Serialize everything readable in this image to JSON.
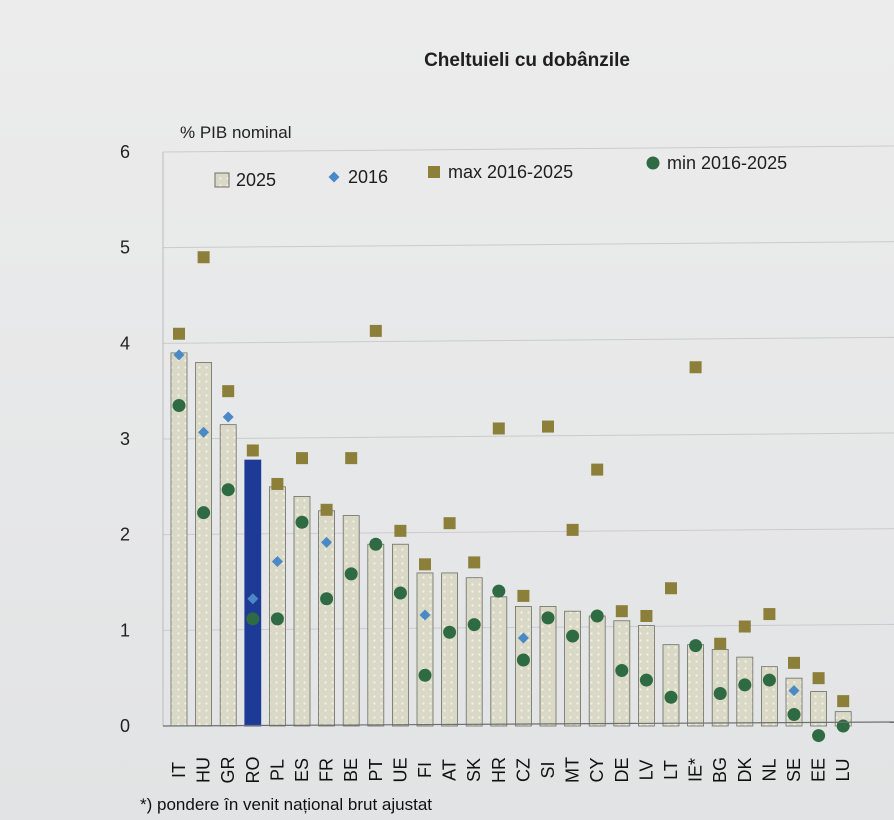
{
  "chart_data": {
    "type": "bar",
    "title": "Cheltuieli cu dobânzile",
    "ylabel": "% PIB nominal",
    "xlabel": "",
    "ylim": [
      0,
      6
    ],
    "yticks": [
      0,
      1,
      2,
      3,
      4,
      5,
      6
    ],
    "grid": true,
    "legend_position": "top",
    "categories": [
      "IT",
      "HU",
      "GR",
      "RO",
      "PL",
      "ES",
      "FR",
      "BE",
      "PT",
      "UE",
      "FI",
      "AT",
      "SK",
      "HR",
      "CZ",
      "SI",
      "MT",
      "CY",
      "DE",
      "LV",
      "LT",
      "IE*",
      "BG",
      "DK",
      "NL",
      "SE",
      "EE",
      "LU"
    ],
    "highlight_category": "RO",
    "series": [
      {
        "name": "2025",
        "marker": "bar",
        "values": [
          3.9,
          3.8,
          3.15,
          2.78,
          2.5,
          2.4,
          2.25,
          2.2,
          1.9,
          1.9,
          1.6,
          1.6,
          1.55,
          1.35,
          1.25,
          1.25,
          1.2,
          1.15,
          1.1,
          1.05,
          0.85,
          0.85,
          0.8,
          0.72,
          0.62,
          0.5,
          0.36,
          0.15
        ]
      },
      {
        "name": "2016",
        "marker": "diamond",
        "values": [
          3.88,
          3.07,
          3.23,
          1.33,
          1.72,
          null,
          1.92,
          null,
          null,
          null,
          1.16,
          null,
          null,
          null,
          0.92,
          null,
          null,
          null,
          null,
          null,
          null,
          null,
          null,
          null,
          null,
          0.37,
          null,
          null
        ]
      },
      {
        "name": "max 2016-2025",
        "marker": "square",
        "values": [
          4.1,
          4.9,
          3.5,
          2.88,
          2.53,
          2.8,
          2.26,
          2.8,
          4.13,
          2.04,
          1.69,
          2.12,
          1.71,
          3.11,
          1.36,
          3.13,
          2.05,
          2.68,
          1.2,
          1.15,
          1.44,
          3.75,
          0.86,
          1.04,
          1.17,
          0.66,
          0.5,
          0.26
        ]
      },
      {
        "name": "min 2016-2025",
        "marker": "circle",
        "values": [
          3.35,
          2.23,
          2.47,
          1.12,
          1.12,
          2.13,
          1.33,
          1.59,
          1.9,
          1.39,
          0.53,
          0.98,
          1.06,
          1.41,
          0.69,
          1.13,
          0.94,
          1.15,
          0.58,
          0.48,
          0.3,
          0.84,
          0.34,
          0.43,
          0.48,
          0.12,
          -0.1,
          0.0
        ]
      }
    ],
    "colors": {
      "bar_fill": "#d9d7c6",
      "bar_stroke": "#6d6e66",
      "highlight": "#1d3a96",
      "diamond": "#4b88c6",
      "square": "#8b7f3a",
      "circle": "#2e6b43",
      "grid": "#c9cbcd"
    }
  },
  "footnote": "*) pondere în venit național brut ajustat"
}
